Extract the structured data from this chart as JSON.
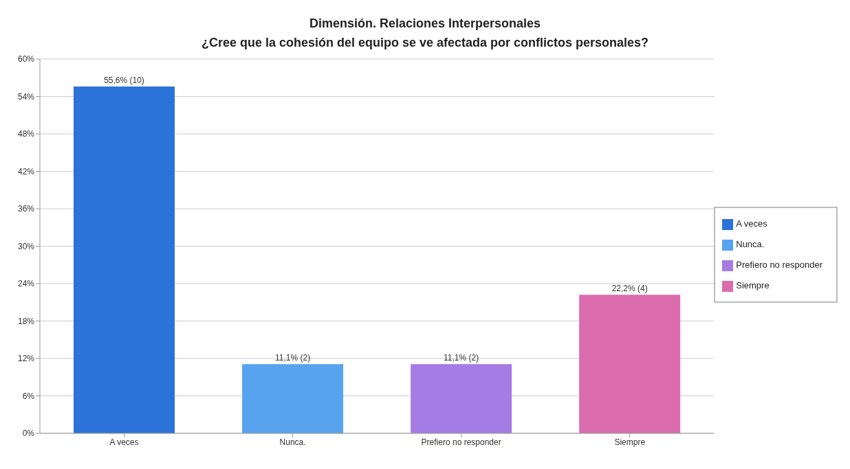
{
  "chart_data": {
    "type": "bar",
    "title": "Dimensión. Relaciones Interpersonales",
    "subtitle": "¿Cree que la cohesión del equipo se ve afectada por conflictos personales?",
    "categories": [
      "A veces",
      "Nunca.",
      "Prefiero no responder",
      "Siempre"
    ],
    "stacked": true,
    "series": [
      {
        "name": "A veces",
        "color": "#2b72d9",
        "values": [
          55.6,
          null,
          null,
          null
        ],
        "value_labels": [
          "55,6% (10)",
          null,
          null,
          null
        ]
      },
      {
        "name": "Nunca.",
        "color": "#58a3ef",
        "values": [
          null,
          11.1,
          null,
          null
        ],
        "value_labels": [
          null,
          "11,1% (2)",
          null,
          null
        ]
      },
      {
        "name": "Prefiero no responder",
        "color": "#a57be4",
        "values": [
          null,
          null,
          11.1,
          null
        ],
        "value_labels": [
          null,
          null,
          "11,1% (2)",
          null
        ]
      },
      {
        "name": "Siempre",
        "color": "#db6cad",
        "values": [
          null,
          null,
          null,
          22.2
        ],
        "value_labels": [
          null,
          null,
          null,
          "22,2% (4)"
        ]
      }
    ],
    "ylim": [
      0,
      60
    ],
    "yticks": [
      {
        "value": 0,
        "label": "0%"
      },
      {
        "value": 6,
        "label": "6%"
      },
      {
        "value": 12,
        "label": "12%"
      },
      {
        "value": 18,
        "label": "18%"
      },
      {
        "value": 24,
        "label": "24%"
      },
      {
        "value": 30,
        "label": "30%"
      },
      {
        "value": 36,
        "label": "36%"
      },
      {
        "value": 42,
        "label": "42%"
      },
      {
        "value": 48,
        "label": "48%"
      },
      {
        "value": 54,
        "label": "54%"
      },
      {
        "value": 60,
        "label": "60%"
      }
    ],
    "grid": "y",
    "legend": "right"
  }
}
